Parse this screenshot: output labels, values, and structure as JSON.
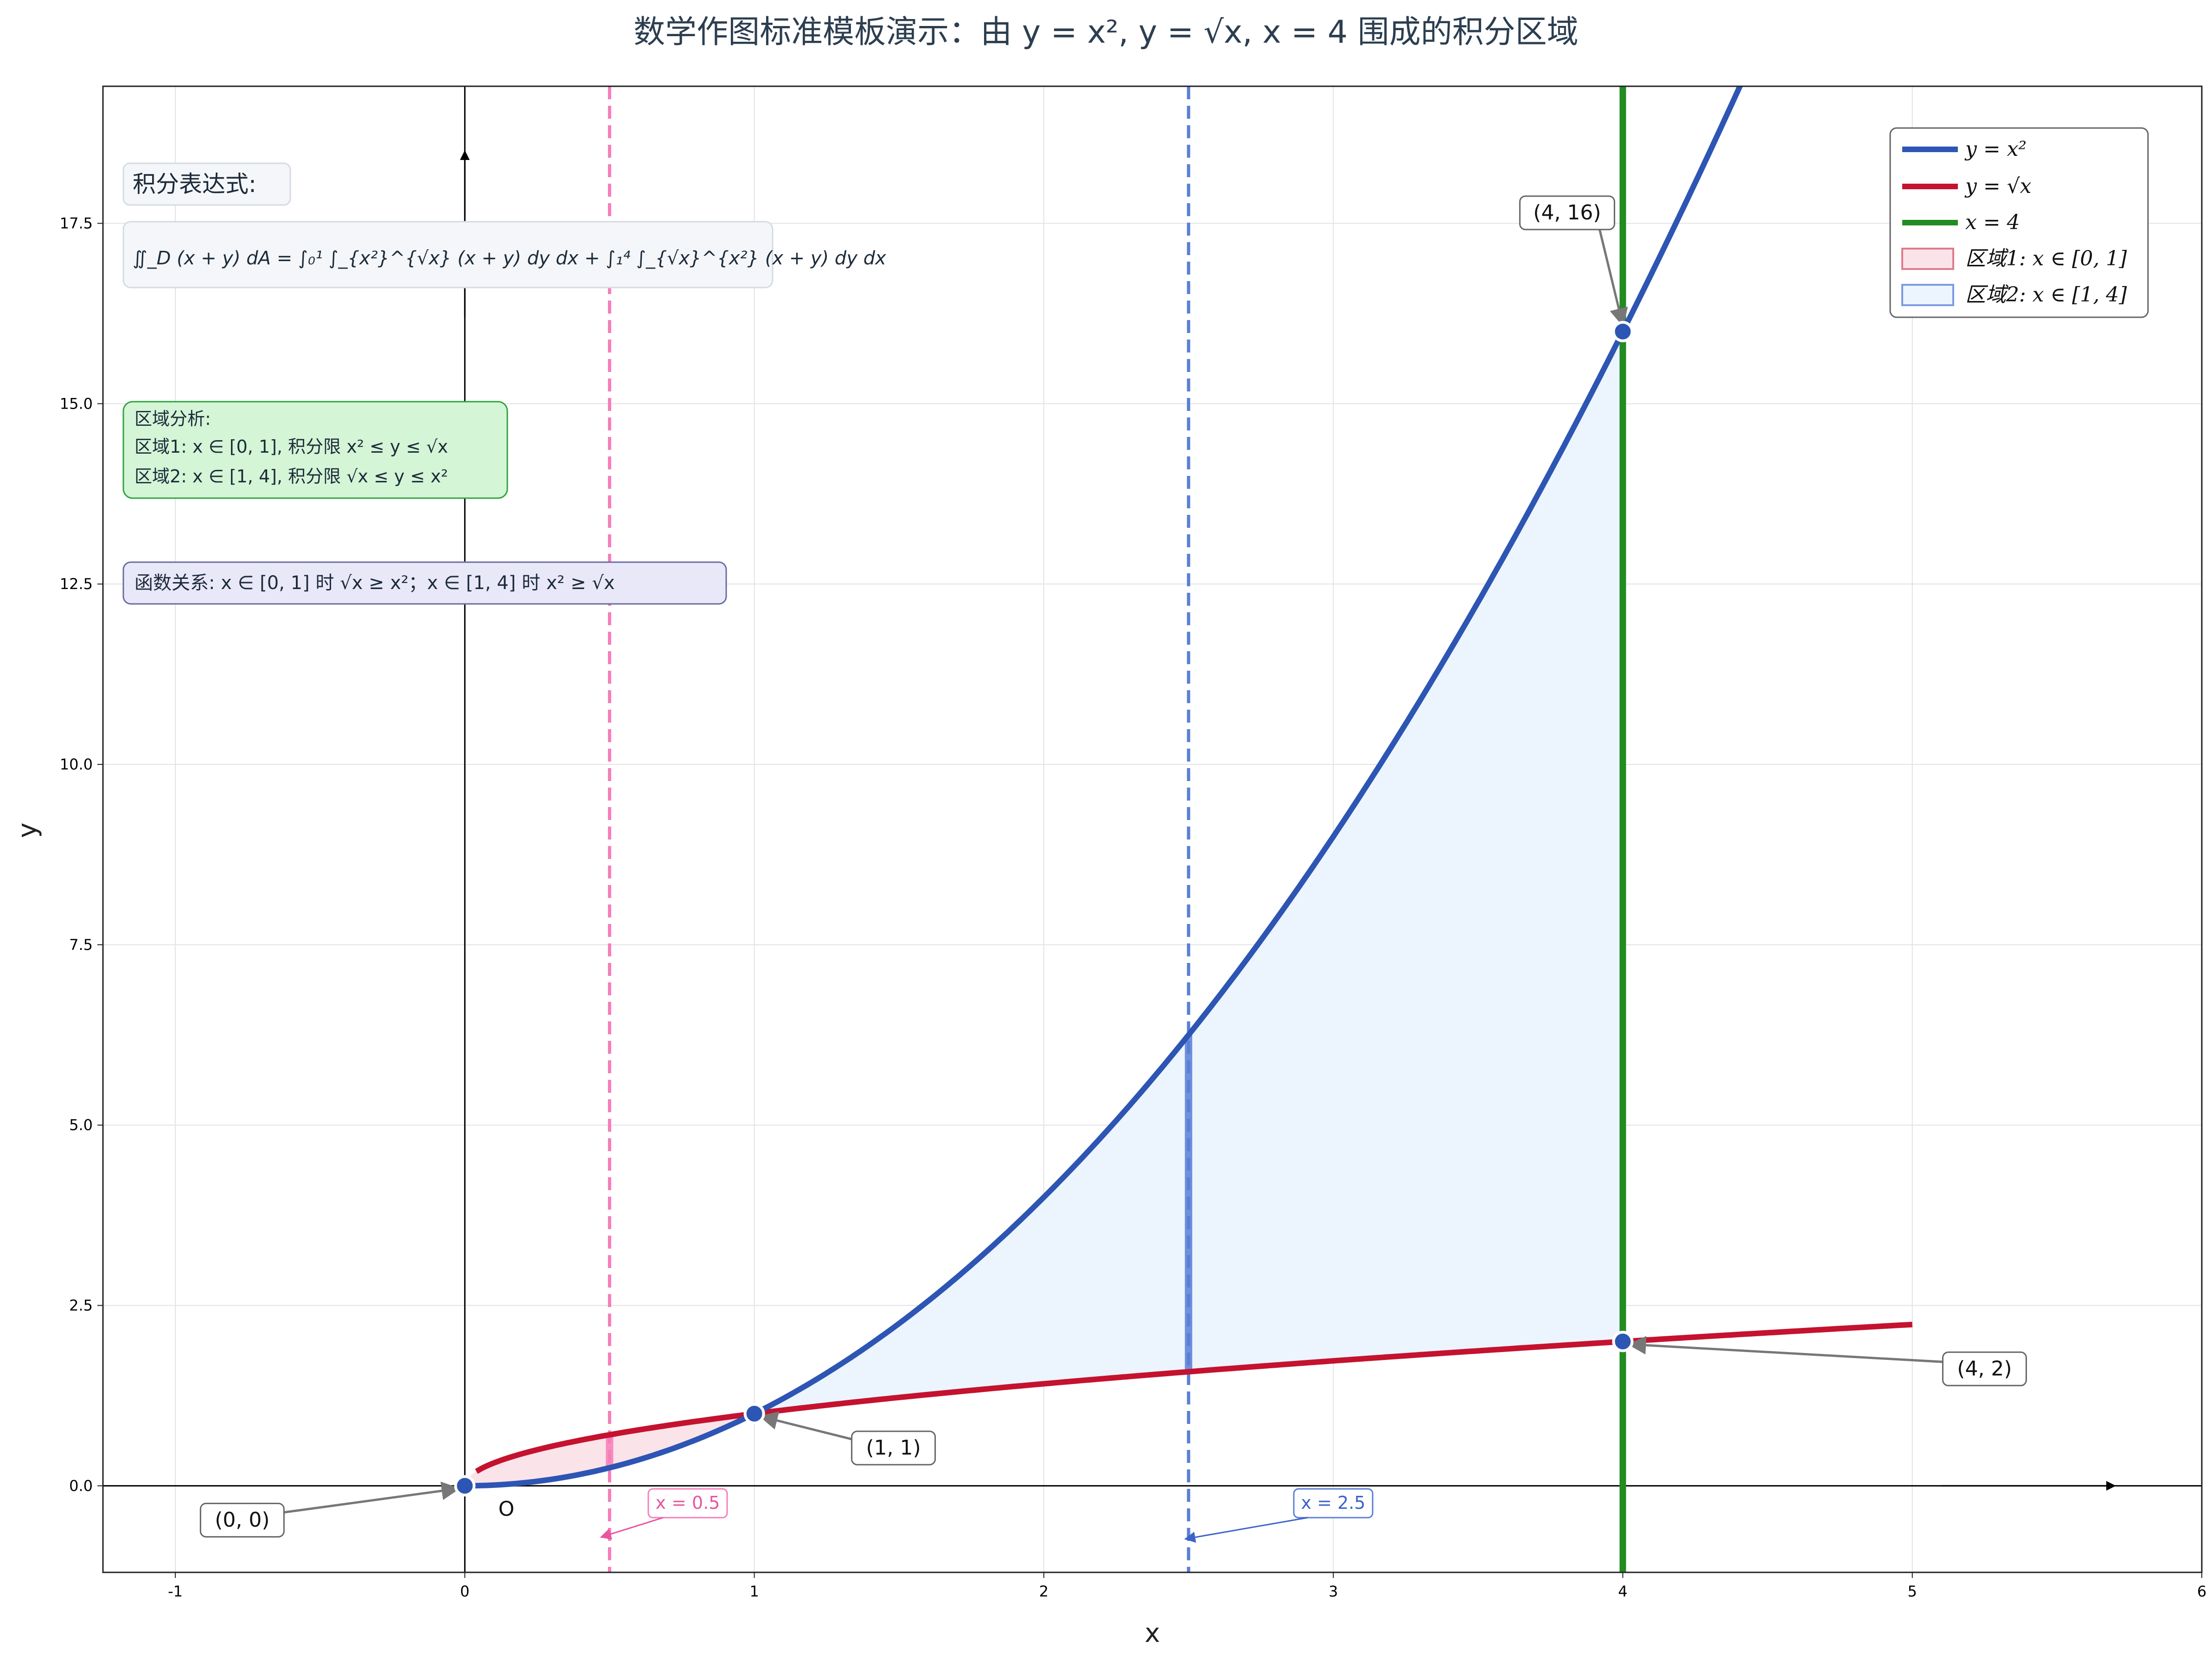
{
  "chart_data": {
    "type": "line",
    "title": "数学作图标准模板演示：由 y = x², y = √x, x = 4 围成的积分区域",
    "xlabel": "x",
    "ylabel": "y",
    "xlim": [
      -1.25,
      6
    ],
    "ylim": [
      -1.2,
      19.4
    ],
    "xticks": [
      -1,
      0,
      1,
      2,
      3,
      4,
      5,
      6
    ],
    "xtick_labels": [
      "-1",
      "0",
      "1",
      "2",
      "3",
      "4",
      "5",
      "6"
    ],
    "yticks": [
      0,
      2.5,
      5,
      7.5,
      10,
      12.5,
      15,
      17.5
    ],
    "ytick_labels": [
      "0.0",
      "2.5",
      "5.0",
      "7.5",
      "10.0",
      "12.5",
      "15.0",
      "17.5"
    ],
    "grid": true,
    "legend_position": "top-right",
    "series": [
      {
        "name": "y = x²",
        "function": "x^2",
        "x_range": [
          0,
          4.5
        ],
        "color": "#2d55b3"
      },
      {
        "name": "y = √x",
        "function": "sqrt(x)",
        "x_range": [
          0,
          5
        ],
        "color": "#c4122f"
      },
      {
        "name": "x = 4",
        "vertical_line": 4,
        "color": "#228b22"
      }
    ],
    "regions": [
      {
        "name": "区域1: x ∈ [0, 1]",
        "x_range": [
          0,
          1
        ],
        "lower": "x^2",
        "upper": "sqrt(x)",
        "color": "#fbe3ea",
        "edge": "#e07a8c"
      },
      {
        "name": "区域2: x ∈ [1, 4]",
        "x_range": [
          1,
          4
        ],
        "lower": "sqrt(x)",
        "upper": "x^2",
        "color": "#ecf4fd",
        "edge": "#7a9be0"
      }
    ],
    "reference_lines": [
      {
        "x": 0.5,
        "label": "x = 0.5",
        "color": "#f77eb9",
        "style": "dashed"
      },
      {
        "x": 2.5,
        "label": "x = 2.5",
        "color": "#5a7fd6",
        "style": "dashed"
      }
    ],
    "points": [
      {
        "x": 0,
        "y": 0,
        "label": "(0, 0)"
      },
      {
        "x": 1,
        "y": 1,
        "label": "(1, 1)"
      },
      {
        "x": 4,
        "y": 16,
        "label": "(4, 16)"
      },
      {
        "x": 4,
        "y": 2,
        "label": "(4, 2)"
      }
    ],
    "origin_label": "O",
    "annotations": {
      "integral_title": "积分表达式:",
      "integral_formula": "∬_D (x + y) dA = ∫₀¹ ∫_{x²}^{√x} (x + y) dy dx + ∫₁⁴ ∫_{√x}^{x²} (x + y) dy dx",
      "region_analysis": [
        "区域分析:",
        "区域1: x ∈ [0, 1], 积分限 x² ≤ y ≤ √x",
        "区域2: x ∈ [1, 4], 积分限 √x ≤ y ≤ x²"
      ],
      "function_relation": "函数关系: x ∈ [0, 1] 时 √x ≥ x²；x ∈ [1, 4] 时 x² ≥ √x"
    }
  }
}
